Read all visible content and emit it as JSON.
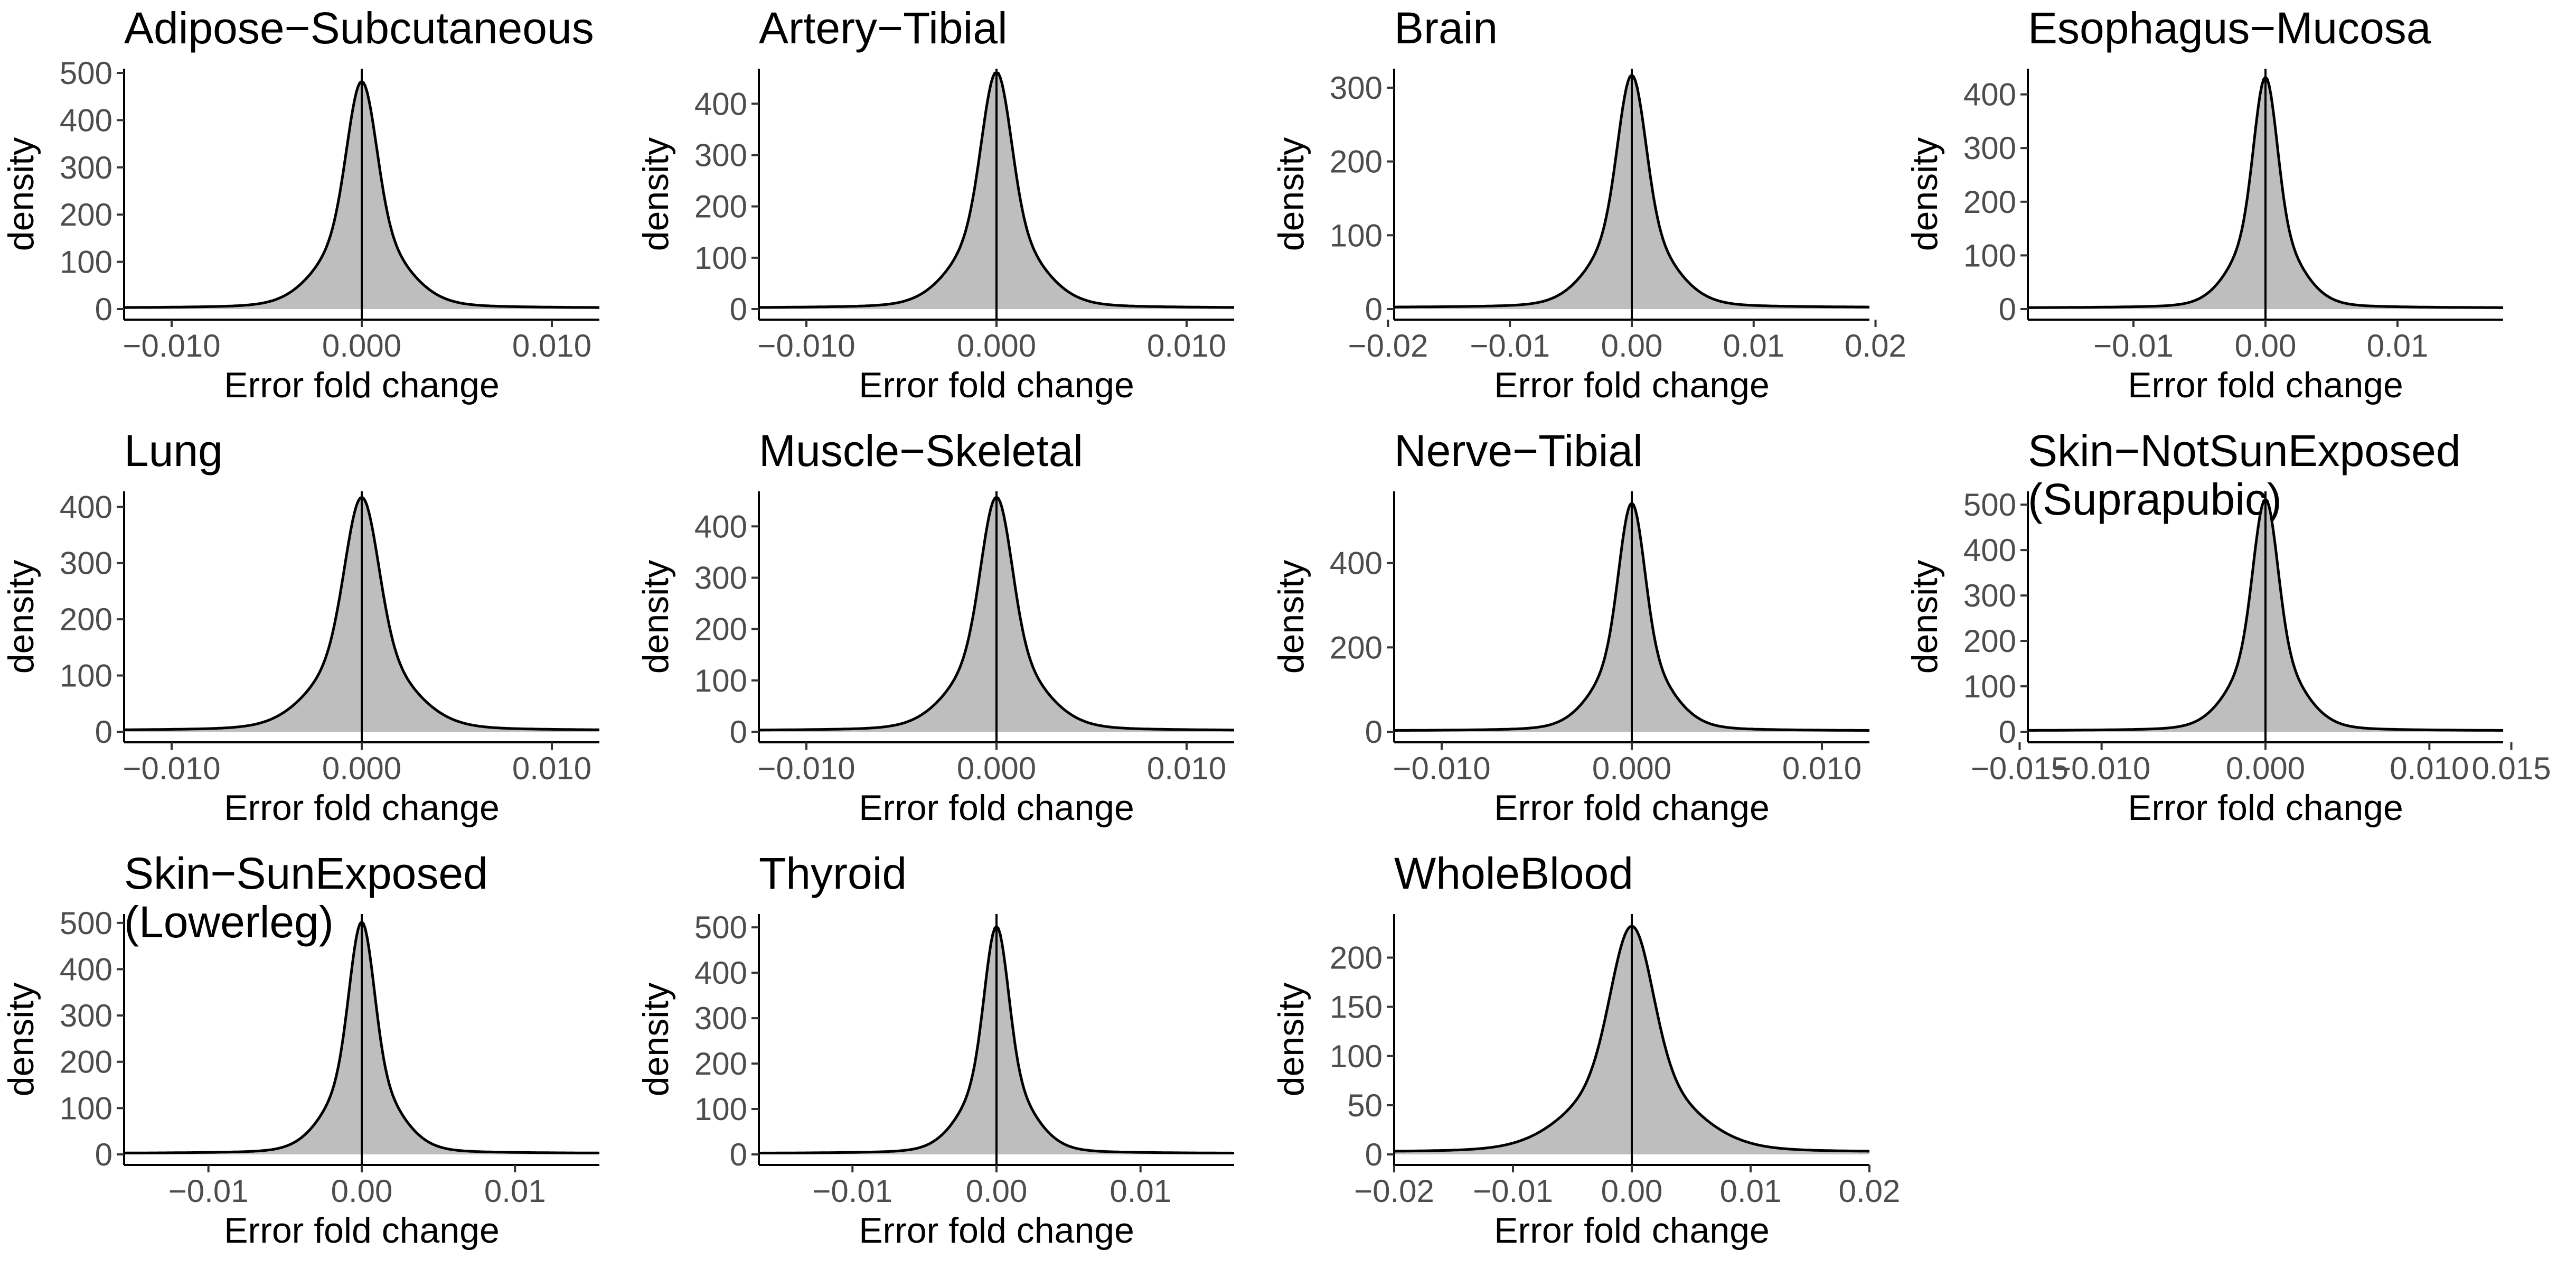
{
  "chart_data": [
    {
      "type": "area",
      "title": [
        "Adipose−Subcutaneous"
      ],
      "xlabel": "Error fold change",
      "ylabel": "density",
      "xlim": [
        -0.0125,
        0.0125
      ],
      "ylim": [
        0,
        500
      ],
      "peak": 480,
      "sigma": 0.00075,
      "xticks": [
        -0.01,
        0,
        0.01
      ],
      "xtick_labels": [
        "−0.010",
        "0.000",
        "0.010"
      ],
      "yticks": [
        0,
        100,
        200,
        300,
        400,
        500
      ],
      "ytick_labels": [
        "0",
        "100",
        "200",
        "300",
        "400",
        "500"
      ]
    },
    {
      "type": "area",
      "title": [
        "Artery−Tibial"
      ],
      "xlabel": "Error fold change",
      "ylabel": "density",
      "xlim": [
        -0.0125,
        0.0125
      ],
      "ylim": [
        0,
        460
      ],
      "peak": 460,
      "sigma": 0.00075,
      "xticks": [
        -0.01,
        0,
        0.01
      ],
      "xtick_labels": [
        "−0.010",
        "0.000",
        "0.010"
      ],
      "yticks": [
        0,
        100,
        200,
        300,
        400
      ],
      "ytick_labels": [
        "0",
        "100",
        "200",
        "300",
        "400"
      ]
    },
    {
      "type": "area",
      "title": [
        "Brain"
      ],
      "xlabel": "Error fold change",
      "ylabel": "density",
      "xlim": [
        -0.0195,
        0.0195
      ],
      "ylim": [
        0,
        320
      ],
      "peak": 315,
      "sigma": 0.0011,
      "xticks": [
        -0.02,
        -0.01,
        0,
        0.01,
        0.02
      ],
      "xtick_labels": [
        "−0.02",
        "−0.01",
        "0.00",
        "0.01",
        "0.02"
      ],
      "yticks": [
        0,
        100,
        200,
        300
      ],
      "ytick_labels": [
        "0",
        "100",
        "200",
        "300"
      ]
    },
    {
      "type": "area",
      "title": [
        "Esophagus−Mucosa"
      ],
      "xlabel": "Error fold change",
      "ylabel": "density",
      "xlim": [
        -0.018,
        0.018
      ],
      "ylim": [
        0,
        440
      ],
      "peak": 430,
      "sigma": 0.00085,
      "xticks": [
        -0.01,
        0,
        0.01
      ],
      "xtick_labels": [
        "−0.01",
        "0.00",
        "0.01"
      ],
      "yticks": [
        0,
        100,
        200,
        300,
        400
      ],
      "ytick_labels": [
        "0",
        "100",
        "200",
        "300",
        "400"
      ]
    },
    {
      "type": "area",
      "title": [
        "Lung"
      ],
      "xlabel": "Error fold change",
      "ylabel": "density",
      "xlim": [
        -0.0125,
        0.0125
      ],
      "ylim": [
        0,
        420
      ],
      "peak": 415,
      "sigma": 0.00085,
      "xticks": [
        -0.01,
        0,
        0.01
      ],
      "xtick_labels": [
        "−0.010",
        "0.000",
        "0.010"
      ],
      "yticks": [
        0,
        100,
        200,
        300,
        400
      ],
      "ytick_labels": [
        "0",
        "100",
        "200",
        "300",
        "400"
      ]
    },
    {
      "type": "area",
      "title": [
        "Muscle−Skeletal"
      ],
      "xlabel": "Error fold change",
      "ylabel": "density",
      "xlim": [
        -0.0125,
        0.0125
      ],
      "ylim": [
        0,
        460
      ],
      "peak": 455,
      "sigma": 0.00078,
      "xticks": [
        -0.01,
        0,
        0.01
      ],
      "xtick_labels": [
        "−0.010",
        "0.000",
        "0.010"
      ],
      "yticks": [
        0,
        100,
        200,
        300,
        400
      ],
      "ytick_labels": [
        "0",
        "100",
        "200",
        "300",
        "400"
      ]
    },
    {
      "type": "area",
      "title": [
        "Nerve−Tibial"
      ],
      "xlabel": "Error fold change",
      "ylabel": "density",
      "xlim": [
        -0.0125,
        0.0125
      ],
      "ylim": [
        0,
        560
      ],
      "peak": 540,
      "sigma": 0.00065,
      "xticks": [
        -0.01,
        0,
        0.01
      ],
      "xtick_labels": [
        "−0.010",
        "0.000",
        "0.010"
      ],
      "yticks": [
        0,
        200,
        400
      ],
      "ytick_labels": [
        "0",
        "200",
        "400"
      ]
    },
    {
      "type": "area",
      "title": [
        "Skin−NotSunExposed",
        "(Suprapubic)"
      ],
      "xlabel": "Error fold change",
      "ylabel": "density",
      "xlim": [
        -0.0145,
        0.0145
      ],
      "ylim": [
        0,
        520
      ],
      "peak": 510,
      "sigma": 0.00072,
      "xticks": [
        -0.015,
        -0.01,
        0,
        0.01,
        0.015
      ],
      "xtick_labels": [
        "−0.015",
        "−0.010",
        "0.000",
        "0.010",
        "0.015"
      ],
      "yticks": [
        0,
        100,
        200,
        300,
        400,
        500
      ],
      "ytick_labels": [
        "0",
        "100",
        "200",
        "300",
        "400",
        "500"
      ]
    },
    {
      "type": "area",
      "title": [
        "Skin−SunExposed",
        "(Lowerleg)"
      ],
      "xlabel": "Error fold change",
      "ylabel": "density",
      "xlim": [
        -0.0155,
        0.0155
      ],
      "ylim": [
        0,
        510
      ],
      "peak": 500,
      "sigma": 0.00078,
      "xticks": [
        -0.01,
        0,
        0.01
      ],
      "xtick_labels": [
        "−0.01",
        "0.00",
        "0.01"
      ],
      "yticks": [
        0,
        100,
        200,
        300,
        400,
        500
      ],
      "ytick_labels": [
        "0",
        "100",
        "200",
        "300",
        "400",
        "500"
      ]
    },
    {
      "type": "area",
      "title": [
        "Thyroid"
      ],
      "xlabel": "Error fold change",
      "ylabel": "density",
      "xlim": [
        -0.0165,
        0.0165
      ],
      "ylim": [
        0,
        520
      ],
      "peak": 500,
      "sigma": 0.0008,
      "xticks": [
        -0.01,
        0,
        0.01
      ],
      "xtick_labels": [
        "−0.01",
        "0.00",
        "0.01"
      ],
      "yticks": [
        0,
        100,
        200,
        300,
        400,
        500
      ],
      "ytick_labels": [
        "0",
        "100",
        "200",
        "300",
        "400",
        "500"
      ]
    },
    {
      "type": "area",
      "title": [
        "WholeBlood"
      ],
      "xlabel": "Error fold change",
      "ylabel": "density",
      "xlim": [
        -0.02,
        0.02
      ],
      "ylim": [
        0,
        240
      ],
      "peak": 230,
      "sigma": 0.0017,
      "xticks": [
        -0.02,
        -0.01,
        0,
        0.01,
        0.02
      ],
      "xtick_labels": [
        "−0.02",
        "−0.01",
        "0.00",
        "0.01",
        "0.02"
      ],
      "yticks": [
        0,
        50,
        100,
        150,
        200
      ],
      "ytick_labels": [
        "0",
        "50",
        "100",
        "150",
        "200"
      ]
    }
  ]
}
